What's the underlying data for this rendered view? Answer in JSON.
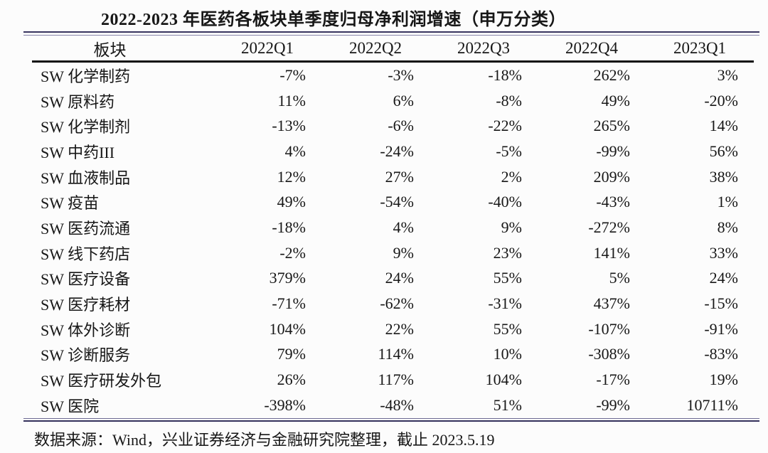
{
  "page": {
    "background": "#fcfcfc",
    "text_color": "#171717"
  },
  "colors": {
    "rule_navy": "#38345f",
    "rule_navy_light": "#8886ab",
    "rule_black": "#0e0e0e"
  },
  "chart_data": {
    "type": "table",
    "title": "2022-2023 年医药各板块单季度归母净利润增速（申万分类）",
    "columns": [
      "板块",
      "2022Q1",
      "2022Q2",
      "2022Q3",
      "2022Q4",
      "2023Q1"
    ],
    "rows": [
      {
        "sector": "SW 化学制药",
        "values": [
          "-7%",
          "-3%",
          "-18%",
          "262%",
          "3%"
        ]
      },
      {
        "sector": "SW 原料药",
        "values": [
          "11%",
          "6%",
          "-8%",
          "49%",
          "-20%"
        ]
      },
      {
        "sector": "SW 化学制剂",
        "values": [
          "-13%",
          "-6%",
          "-22%",
          "265%",
          "14%"
        ]
      },
      {
        "sector": "SW 中药III",
        "values": [
          "4%",
          "-24%",
          "-5%",
          "-99%",
          "56%"
        ]
      },
      {
        "sector": "SW 血液制品",
        "values": [
          "12%",
          "27%",
          "2%",
          "209%",
          "38%"
        ]
      },
      {
        "sector": "SW 疫苗",
        "values": [
          "49%",
          "-54%",
          "-40%",
          "-43%",
          "1%"
        ]
      },
      {
        "sector": "SW 医药流通",
        "values": [
          "-18%",
          "4%",
          "9%",
          "-272%",
          "8%"
        ]
      },
      {
        "sector": "SW 线下药店",
        "values": [
          "-2%",
          "9%",
          "23%",
          "141%",
          "33%"
        ]
      },
      {
        "sector": "SW 医疗设备",
        "values": [
          "379%",
          "24%",
          "55%",
          "5%",
          "24%"
        ]
      },
      {
        "sector": "SW 医疗耗材",
        "values": [
          "-71%",
          "-62%",
          "-31%",
          "437%",
          "-15%"
        ]
      },
      {
        "sector": "SW 体外诊断",
        "values": [
          "104%",
          "22%",
          "55%",
          "-107%",
          "-91%"
        ]
      },
      {
        "sector": "SW 诊断服务",
        "values": [
          "79%",
          "114%",
          "10%",
          "-308%",
          "-83%"
        ]
      },
      {
        "sector": "SW 医疗研发外包",
        "values": [
          "26%",
          "117%",
          "104%",
          "-17%",
          "19%"
        ]
      },
      {
        "sector": "SW 医院",
        "values": [
          "-398%",
          "-48%",
          "51%",
          "-99%",
          "10711%"
        ]
      }
    ],
    "source": "数据来源：Wind，兴业证券经济与金融研究院整理，截止 2023.5.19",
    "layout": {
      "header_align": "center",
      "value_align": "right",
      "sector_align": "left",
      "gridlines": "none"
    }
  }
}
